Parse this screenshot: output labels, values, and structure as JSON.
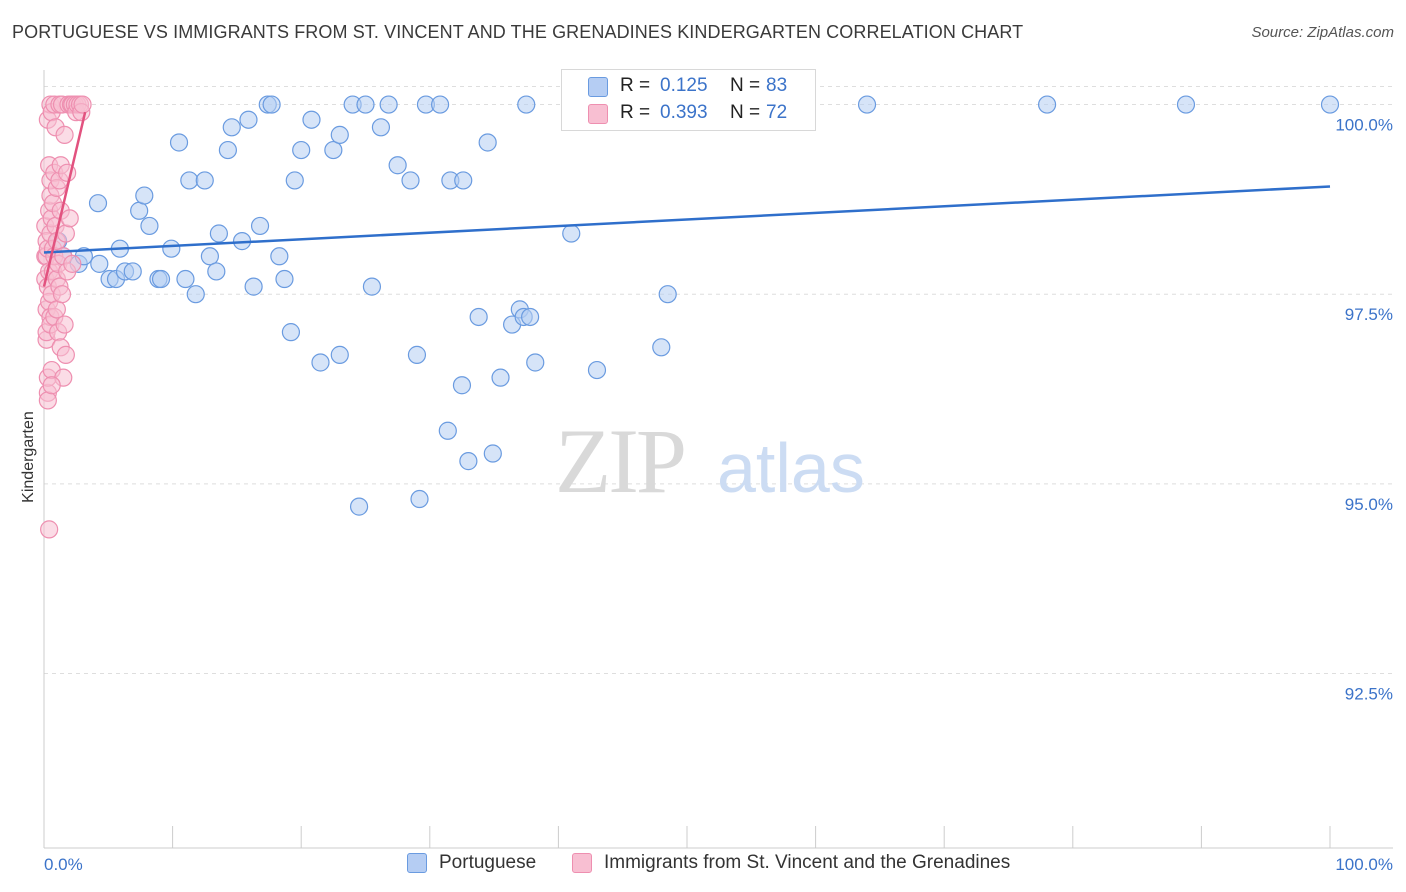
{
  "title": "PORTUGUESE VS IMMIGRANTS FROM ST. VINCENT AND THE GRENADINES KINDERGARTEN CORRELATION CHART",
  "source": "Source: ZipAtlas.com",
  "watermark": {
    "zip": "ZIP",
    "atlas": "atlas"
  },
  "colors": {
    "blue_fill": "#b5cdf3",
    "blue_stroke": "#6a9be0",
    "blue_line": "#2f6fcb",
    "pink_fill": "#f8bfd2",
    "pink_stroke": "#ee8fb0",
    "pink_line": "#e2527f",
    "tick_text": "#3b73c9",
    "grid": "#dedede"
  },
  "legend": {
    "rows": [
      {
        "r_label": "R =",
        "r_value": "0.125",
        "n_label": "N =",
        "n_value": "83",
        "color": "blue"
      },
      {
        "r_label": "R =",
        "r_value": "0.393",
        "n_label": "N =",
        "n_value": "72",
        "color": "pink"
      }
    ]
  },
  "bottom_legend": [
    {
      "label": "Portuguese",
      "color": "blue"
    },
    {
      "label": "Immigrants from St. Vincent and the Grenadines",
      "color": "pink"
    }
  ],
  "chart_data": {
    "type": "scatter",
    "title": "PORTUGUESE VS IMMIGRANTS FROM ST. VINCENT AND THE GRENADINES KINDERGARTEN CORRELATION CHART",
    "ylabel": "Kindergarten",
    "xlabel": "",
    "xlim": [
      0,
      100
    ],
    "ylim": [
      90.2,
      100.35
    ],
    "y_ticks": [
      {
        "value": 100.0,
        "label": "100.0%"
      },
      {
        "value": 97.5,
        "label": "97.5%"
      },
      {
        "value": 95.0,
        "label": "95.0%"
      },
      {
        "value": 92.5,
        "label": "92.5%"
      }
    ],
    "x_tick_labels": {
      "left": "0.0%",
      "right": "100.0%"
    },
    "x_minor_ticks": [
      0,
      10,
      20,
      30,
      40,
      50,
      60,
      70,
      80,
      90,
      100
    ],
    "series": [
      {
        "name": "Portuguese",
        "color": "blue",
        "trend": {
          "x": [
            0,
            100
          ],
          "y": [
            98.05,
            98.92
          ]
        },
        "points": [
          [
            1.1,
            98.2
          ],
          [
            1.5,
            98.0
          ],
          [
            2.7,
            97.9
          ],
          [
            3.1,
            98.0
          ],
          [
            4.3,
            97.9
          ],
          [
            4.2,
            98.7
          ],
          [
            5.1,
            97.7
          ],
          [
            5.6,
            97.7
          ],
          [
            5.9,
            98.1
          ],
          [
            6.3,
            97.8
          ],
          [
            6.9,
            97.8
          ],
          [
            7.4,
            98.6
          ],
          [
            7.8,
            98.8
          ],
          [
            8.2,
            98.4
          ],
          [
            8.9,
            97.7
          ],
          [
            9.1,
            97.7
          ],
          [
            9.9,
            98.1
          ],
          [
            10.5,
            99.5
          ],
          [
            11.0,
            97.7
          ],
          [
            11.3,
            99.0
          ],
          [
            11.8,
            97.5
          ],
          [
            12.5,
            99.0
          ],
          [
            12.9,
            98.0
          ],
          [
            13.4,
            97.8
          ],
          [
            13.6,
            98.3
          ],
          [
            14.3,
            99.4
          ],
          [
            14.6,
            99.7
          ],
          [
            15.4,
            98.2
          ],
          [
            15.9,
            99.8
          ],
          [
            16.3,
            97.6
          ],
          [
            16.8,
            98.4
          ],
          [
            17.4,
            100.0
          ],
          [
            17.7,
            100.0
          ],
          [
            18.3,
            98.0
          ],
          [
            18.7,
            97.7
          ],
          [
            19.2,
            97.0
          ],
          [
            19.5,
            99.0
          ],
          [
            20.0,
            99.4
          ],
          [
            20.8,
            99.8
          ],
          [
            21.5,
            96.6
          ],
          [
            22.5,
            99.4
          ],
          [
            23.0,
            96.7
          ],
          [
            23.0,
            99.6
          ],
          [
            24.0,
            100.0
          ],
          [
            24.5,
            94.7
          ],
          [
            25.0,
            100.0
          ],
          [
            25.5,
            97.6
          ],
          [
            26.2,
            99.7
          ],
          [
            26.8,
            100.0
          ],
          [
            27.5,
            99.2
          ],
          [
            28.5,
            99.0
          ],
          [
            29.0,
            96.7
          ],
          [
            29.2,
            94.8
          ],
          [
            29.7,
            100.0
          ],
          [
            30.8,
            100.0
          ],
          [
            31.4,
            95.7
          ],
          [
            31.6,
            99.0
          ],
          [
            32.5,
            96.3
          ],
          [
            32.6,
            99.0
          ],
          [
            33.0,
            95.3
          ],
          [
            33.8,
            97.2
          ],
          [
            34.5,
            99.5
          ],
          [
            34.9,
            95.4
          ],
          [
            35.5,
            96.4
          ],
          [
            36.4,
            97.1
          ],
          [
            37.0,
            97.3
          ],
          [
            37.3,
            97.2
          ],
          [
            37.5,
            100.0
          ],
          [
            37.8,
            97.2
          ],
          [
            38.2,
            96.6
          ],
          [
            41.0,
            98.3
          ],
          [
            43.0,
            96.5
          ],
          [
            44.3,
            100.0
          ],
          [
            48.0,
            96.8
          ],
          [
            48.5,
            97.5
          ],
          [
            50.0,
            100.0
          ],
          [
            51.0,
            100.0
          ],
          [
            55.0,
            100.0
          ],
          [
            59.0,
            100.0
          ],
          [
            64.0,
            100.0
          ],
          [
            78.0,
            100.0
          ],
          [
            88.8,
            100.0
          ],
          [
            100.0,
            100.0
          ]
        ]
      },
      {
        "name": "Immigrants from St. Vincent and the Grenadines",
        "color": "pink",
        "trend": {
          "x": [
            0.0,
            3.2
          ],
          "y": [
            97.6,
            99.9
          ]
        },
        "points": [
          [
            0.1,
            98.0
          ],
          [
            0.1,
            97.7
          ],
          [
            0.1,
            98.4
          ],
          [
            0.2,
            97.3
          ],
          [
            0.2,
            96.9
          ],
          [
            0.2,
            98.2
          ],
          [
            0.2,
            97.0
          ],
          [
            0.2,
            98.0
          ],
          [
            0.3,
            96.2
          ],
          [
            0.3,
            96.4
          ],
          [
            0.3,
            97.6
          ],
          [
            0.3,
            98.1
          ],
          [
            0.3,
            99.8
          ],
          [
            0.3,
            96.1
          ],
          [
            0.4,
            97.8
          ],
          [
            0.4,
            98.6
          ],
          [
            0.4,
            99.2
          ],
          [
            0.4,
            97.4
          ],
          [
            0.4,
            94.4
          ],
          [
            0.5,
            98.8
          ],
          [
            0.5,
            99.0
          ],
          [
            0.5,
            97.2
          ],
          [
            0.5,
            98.3
          ],
          [
            0.5,
            100.0
          ],
          [
            0.5,
            97.1
          ],
          [
            0.6,
            99.9
          ],
          [
            0.6,
            98.5
          ],
          [
            0.6,
            97.5
          ],
          [
            0.6,
            96.5
          ],
          [
            0.7,
            98.1
          ],
          [
            0.7,
            97.8
          ],
          [
            0.7,
            98.7
          ],
          [
            0.8,
            99.1
          ],
          [
            0.8,
            98.0
          ],
          [
            0.8,
            97.2
          ],
          [
            0.8,
            100.0
          ],
          [
            0.9,
            98.4
          ],
          [
            0.9,
            99.7
          ],
          [
            1.0,
            97.7
          ],
          [
            1.0,
            97.3
          ],
          [
            1.0,
            98.2
          ],
          [
            1.0,
            98.9
          ],
          [
            1.1,
            97.9
          ],
          [
            1.1,
            97.0
          ],
          [
            1.2,
            97.6
          ],
          [
            1.2,
            99.0
          ],
          [
            1.2,
            100.0
          ],
          [
            1.3,
            98.6
          ],
          [
            1.3,
            96.8
          ],
          [
            1.3,
            99.2
          ],
          [
            1.4,
            97.5
          ],
          [
            1.4,
            100.0
          ],
          [
            1.5,
            98.0
          ],
          [
            1.5,
            96.4
          ],
          [
            1.6,
            97.1
          ],
          [
            1.6,
            99.6
          ],
          [
            1.7,
            98.3
          ],
          [
            1.7,
            96.7
          ],
          [
            1.8,
            97.8
          ],
          [
            1.8,
            99.1
          ],
          [
            1.9,
            100.0
          ],
          [
            2.0,
            98.5
          ],
          [
            2.1,
            100.0
          ],
          [
            2.2,
            97.9
          ],
          [
            2.2,
            100.0
          ],
          [
            2.4,
            100.0
          ],
          [
            2.5,
            99.9
          ],
          [
            2.6,
            100.0
          ],
          [
            2.8,
            100.0
          ],
          [
            2.9,
            99.9
          ],
          [
            3.0,
            100.0
          ],
          [
            0.6,
            96.3
          ]
        ]
      }
    ]
  }
}
